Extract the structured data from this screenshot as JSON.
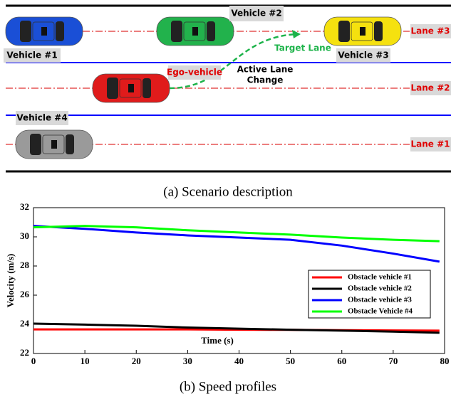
{
  "scenario": {
    "vehicles": [
      "Vehicle #1",
      "Vehicle #2",
      "Vehicle #3",
      "Vehicle #4"
    ],
    "ego": "Ego-vehicle",
    "lanes": [
      "Lane #3",
      "Lane #2",
      "Lane #1"
    ],
    "target": "Target Lane",
    "maneuver": [
      "Active Lane",
      "Change"
    ],
    "caption": "(a) Scenario description"
  },
  "chart_data": {
    "type": "line",
    "caption": "(b) Speed profiles",
    "xlabel": "Time (s)",
    "ylabel": "Velocity (m/s)",
    "x": [
      0,
      10,
      20,
      30,
      40,
      50,
      60,
      70,
      79
    ],
    "series": [
      {
        "name": "Obstacle vehicle #1",
        "color": "#ff0000",
        "values": [
          23.65,
          23.65,
          23.65,
          23.65,
          23.63,
          23.62,
          23.6,
          23.58,
          23.57
        ]
      },
      {
        "name": "Obstacle vehicle #2",
        "color": "#000000",
        "values": [
          24.05,
          23.98,
          23.9,
          23.78,
          23.7,
          23.63,
          23.57,
          23.5,
          23.42
        ]
      },
      {
        "name": "Obstacle vehicle #3",
        "color": "#0000ff",
        "values": [
          30.75,
          30.55,
          30.3,
          30.1,
          29.95,
          29.8,
          29.4,
          28.85,
          28.3
        ]
      },
      {
        "name": "Obstacle Vehicle #4",
        "color": "#00ff00",
        "values": [
          30.65,
          30.75,
          30.65,
          30.45,
          30.3,
          30.15,
          29.95,
          29.8,
          29.7
        ]
      }
    ],
    "xlim": [
      0,
      80
    ],
    "ylim": [
      22,
      32
    ],
    "xticks": [
      0,
      10,
      20,
      30,
      40,
      50,
      60,
      70,
      80
    ],
    "yticks": [
      22,
      24,
      26,
      28,
      30,
      32
    ]
  }
}
